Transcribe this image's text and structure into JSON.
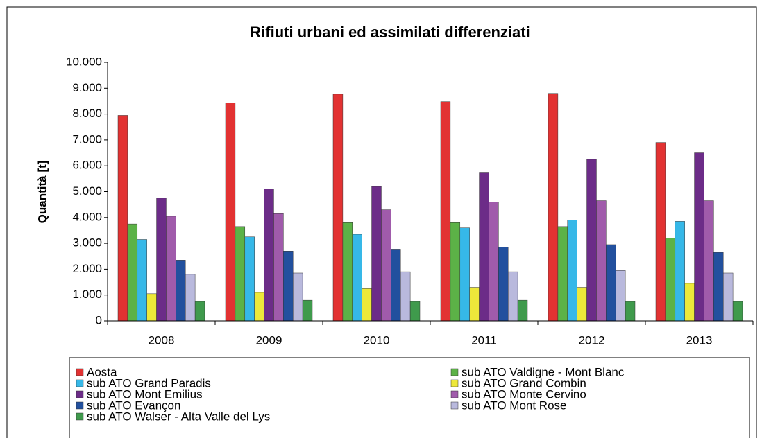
{
  "chart_data": {
    "type": "bar",
    "title": "Rifiuti urbani ed assimilati differenziati",
    "y_label": "Quantità [t]",
    "categories": [
      "2008",
      "2009",
      "2010",
      "2011",
      "2012",
      "2013"
    ],
    "series": [
      {
        "name": "Aosta",
        "color": "#e23232",
        "values": [
          7950,
          8430,
          8770,
          8480,
          8800,
          6900
        ]
      },
      {
        "name": "sub ATO Valdigne - Mont Blanc",
        "color": "#5cb247",
        "values": [
          3750,
          3650,
          3800,
          3800,
          3650,
          3200
        ]
      },
      {
        "name": "sub ATO Grand Paradis",
        "color": "#36b8e8",
        "values": [
          3150,
          3250,
          3350,
          3600,
          3900,
          3850
        ]
      },
      {
        "name": "sub ATO Grand Combin",
        "color": "#ede83a",
        "values": [
          1050,
          1100,
          1250,
          1300,
          1300,
          1450
        ]
      },
      {
        "name": "sub ATO Mont Emilius",
        "color": "#6c2c88",
        "values": [
          4750,
          5100,
          5200,
          5750,
          6250,
          6500
        ]
      },
      {
        "name": "sub ATO Monte Cervino",
        "color": "#a05bab",
        "values": [
          4050,
          4150,
          4300,
          4600,
          4650,
          4650
        ]
      },
      {
        "name": "sub ATO Evançon",
        "color": "#22509e",
        "values": [
          2350,
          2700,
          2750,
          2850,
          2950,
          2650
        ]
      },
      {
        "name": "sub ATO Mont Rose",
        "color": "#b9b9dd",
        "values": [
          1800,
          1850,
          1900,
          1900,
          1950,
          1850
        ]
      },
      {
        "name": "sub ATO Walser - Alta Valle del Lys",
        "color": "#3f9a4c",
        "values": [
          750,
          800,
          750,
          800,
          750,
          750
        ]
      }
    ],
    "ylim": [
      0,
      10000
    ],
    "yticks": [
      0,
      {
        "value": 1000,
        "label": "1.000"
      },
      {
        "value": 2000,
        "label": "2.000"
      },
      {
        "value": 3000,
        "label": "3.000"
      },
      {
        "value": 4000,
        "label": "4.000"
      },
      {
        "value": 5000,
        "label": "5.000"
      },
      {
        "value": 6000,
        "label": "6.000"
      },
      {
        "value": 7000,
        "label": "7.000"
      },
      {
        "value": 8000,
        "label": "8.000"
      },
      {
        "value": 9000,
        "label": "9.000"
      },
      {
        "value": 10000,
        "label": "10.000"
      }
    ],
    "grid": false
  }
}
